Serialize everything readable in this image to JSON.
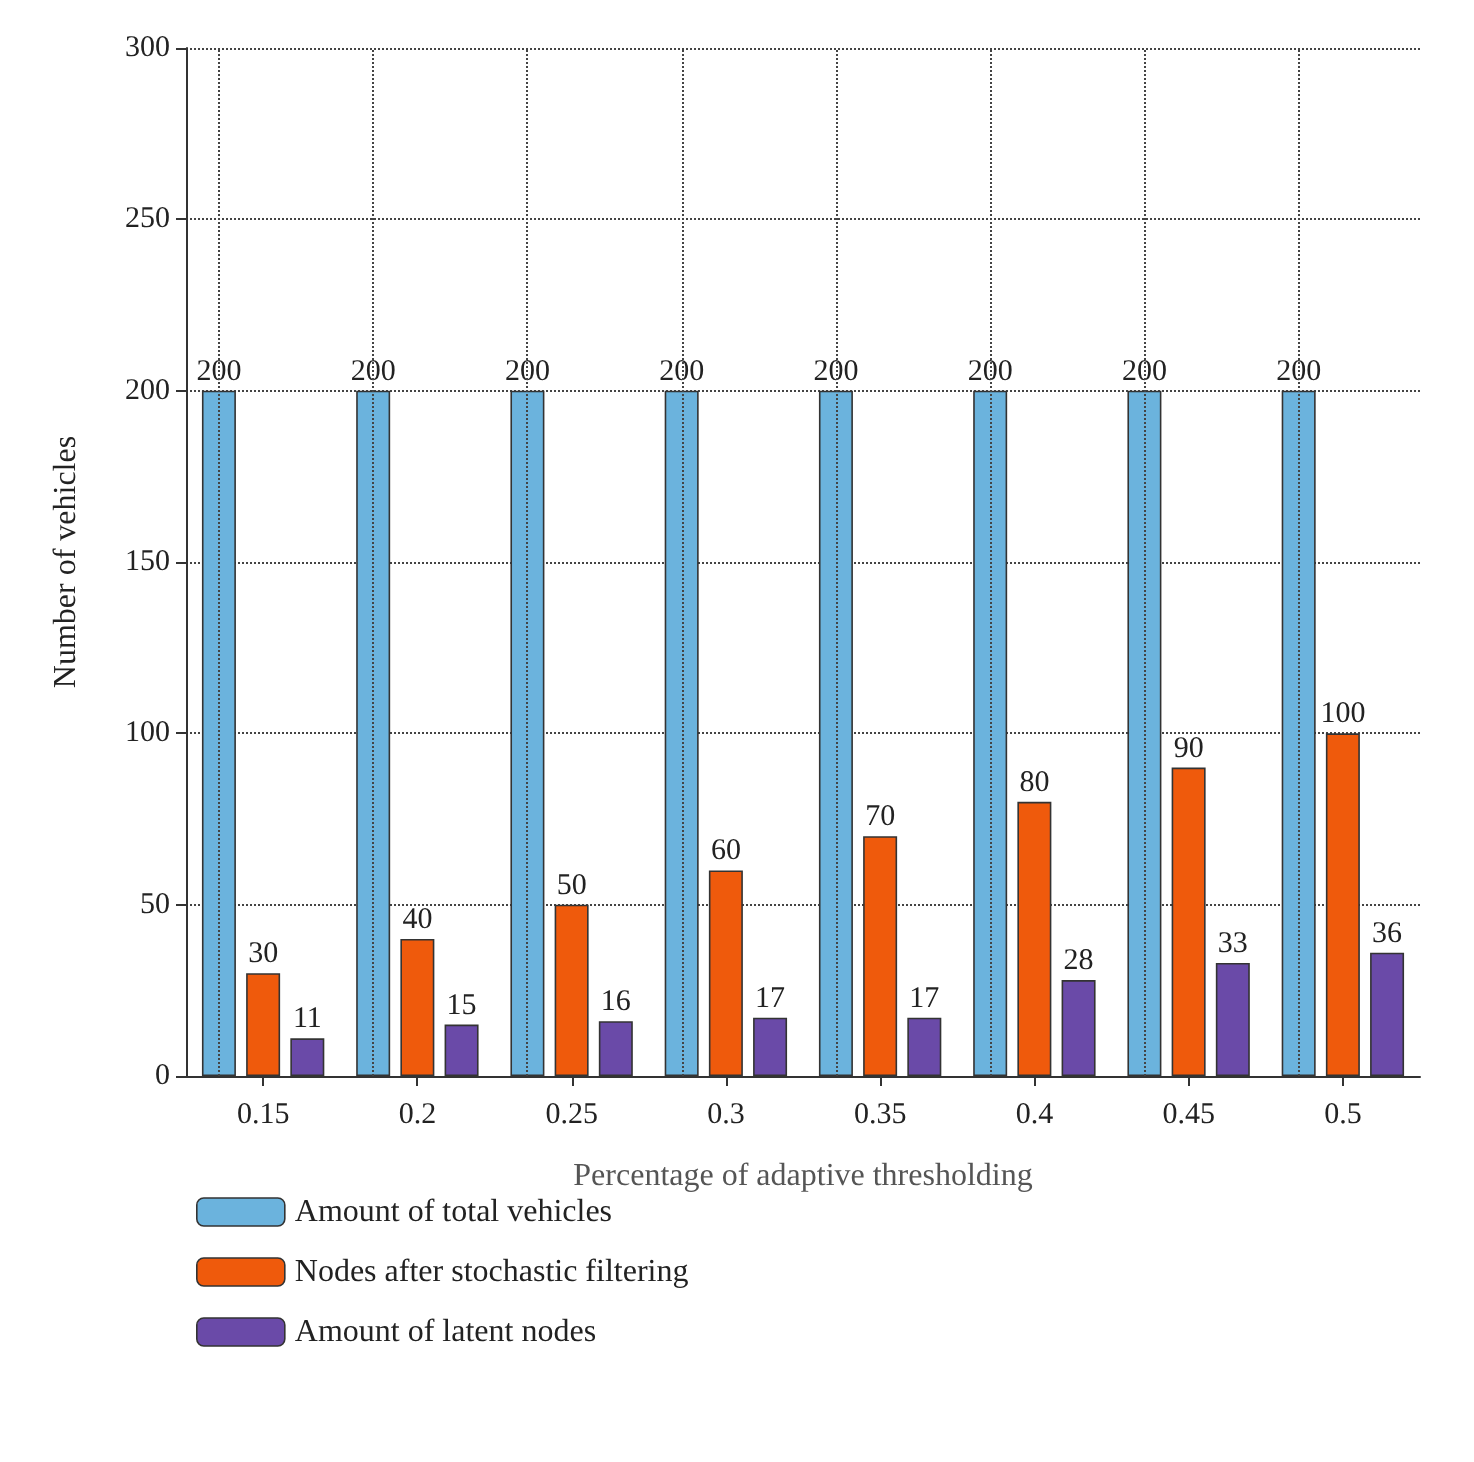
{
  "chart_data": {
    "type": "bar",
    "xlabel": "Percentage of adaptive thresholding",
    "ylabel": "Number of vehicles",
    "categories": [
      "0.15",
      "0.2",
      "0.25",
      "0.3",
      "0.35",
      "0.4",
      "0.45",
      "0.5"
    ],
    "series": [
      {
        "name": "Amount of total vehicles",
        "color": "#6bb3dd",
        "values": [
          200,
          200,
          200,
          200,
          200,
          200,
          200,
          200
        ]
      },
      {
        "name": "Nodes after stochastic filtering",
        "color": "#ef5a0c",
        "values": [
          30,
          40,
          50,
          60,
          70,
          80,
          90,
          100
        ]
      },
      {
        "name": "Amount of latent nodes",
        "color": "#6a4aa8",
        "values": [
          11,
          15,
          16,
          17,
          17,
          28,
          33,
          36
        ]
      }
    ],
    "ylim": [
      0,
      300
    ],
    "yticks": [
      0,
      50,
      100,
      150,
      200,
      250,
      300
    ],
    "grid": true,
    "legend": "bottom",
    "data_labels": true
  }
}
